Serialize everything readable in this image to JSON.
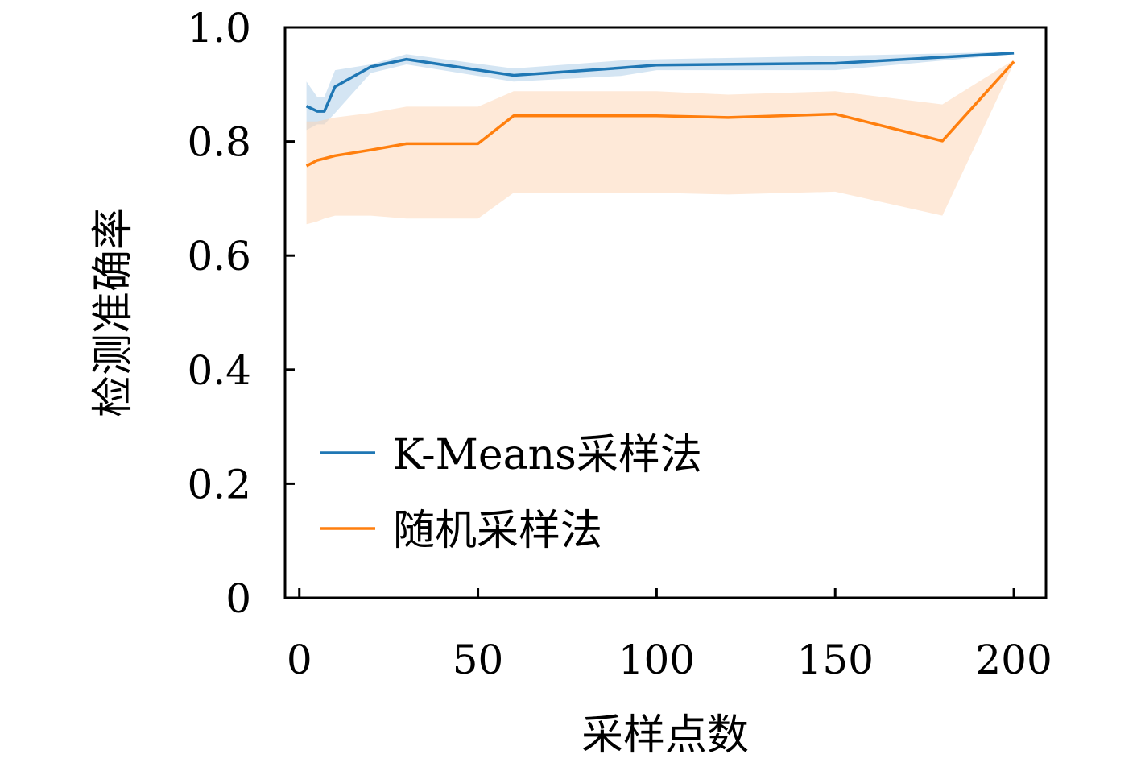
{
  "chart_data": {
    "type": "line",
    "xlabel": "采样点数",
    "ylabel": "检测准确率",
    "xlim": [
      -4,
      209
    ],
    "ylim": [
      0,
      1.0
    ],
    "xticks": [
      0,
      50,
      100,
      150,
      200
    ],
    "xtick_labels": [
      "0",
      "50",
      "100",
      "150",
      "200"
    ],
    "yticks": [
      0,
      0.2,
      0.4,
      0.6,
      0.8,
      1.0
    ],
    "ytick_labels": [
      "0",
      "0.2",
      "0.4",
      "0.6",
      "0.8",
      "1.0"
    ],
    "grid": false,
    "legend_position": "lower-left",
    "series": [
      {
        "name": "K-Means采样法",
        "color": "#1f77b4",
        "band_color": "#a9cbe8",
        "x": [
          2,
          5,
          7,
          10,
          20,
          30,
          60,
          90,
          100,
          150,
          200
        ],
        "y": [
          0.862,
          0.853,
          0.853,
          0.896,
          0.931,
          0.944,
          0.916,
          0.929,
          0.934,
          0.937,
          0.955
        ],
        "lower": [
          0.82,
          0.83,
          0.83,
          0.85,
          0.92,
          0.935,
          0.905,
          0.915,
          0.925,
          0.925,
          0.953
        ],
        "upper": [
          0.905,
          0.878,
          0.878,
          0.925,
          0.935,
          0.953,
          0.928,
          0.942,
          0.944,
          0.95,
          0.957
        ]
      },
      {
        "name": "随机采样法",
        "color": "#ff7f0e",
        "band_color": "#fdd4b1",
        "x": [
          2,
          5,
          7,
          10,
          20,
          30,
          50,
          60,
          100,
          120,
          150,
          180,
          200
        ],
        "y": [
          0.757,
          0.767,
          0.77,
          0.775,
          0.785,
          0.796,
          0.796,
          0.845,
          0.845,
          0.842,
          0.848,
          0.801,
          0.94
        ],
        "lower": [
          0.655,
          0.66,
          0.665,
          0.67,
          0.67,
          0.665,
          0.665,
          0.71,
          0.71,
          0.707,
          0.712,
          0.67,
          0.937
        ],
        "upper": [
          0.835,
          0.835,
          0.838,
          0.842,
          0.85,
          0.861,
          0.861,
          0.888,
          0.888,
          0.882,
          0.888,
          0.865,
          0.943
        ]
      }
    ]
  }
}
